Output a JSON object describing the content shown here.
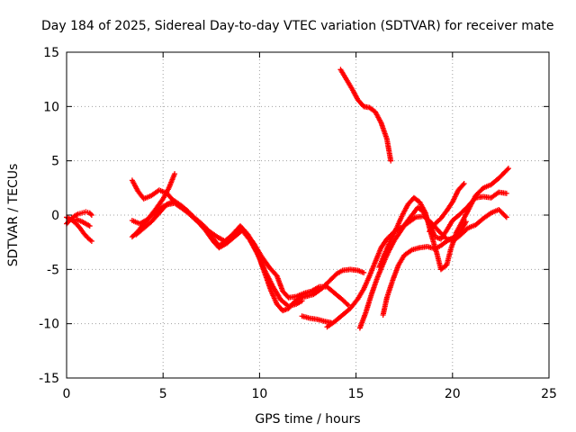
{
  "chart_data": {
    "type": "scatter",
    "title": "Day 184 of 2025, Sidereal Day-to-day VTEC variation (SDTVAR) for receiver mate",
    "xlabel": "GPS time / hours",
    "ylabel": "SDTVAR / TECUs",
    "xlim": [
      0,
      25
    ],
    "ylim": [
      -15,
      15
    ],
    "xticks": [
      0,
      5,
      10,
      15,
      20,
      25
    ],
    "yticks": [
      -15,
      -10,
      -5,
      0,
      5,
      10,
      15
    ],
    "grid": true,
    "marker": "+",
    "color": "#ff0000",
    "series": [
      {
        "points": [
          [
            0,
            -0.2
          ],
          [
            0.3,
            -0.5
          ],
          [
            0.5,
            -0.8
          ],
          [
            0.7,
            -1.2
          ],
          [
            0.9,
            -1.7
          ],
          [
            1.1,
            -2.1
          ],
          [
            1.3,
            -2.4
          ]
        ]
      },
      {
        "points": [
          [
            0,
            -0.8
          ],
          [
            0.2,
            -0.4
          ],
          [
            0.4,
            -0.1
          ],
          [
            0.6,
            0.1
          ],
          [
            0.8,
            0.2
          ],
          [
            1.0,
            0.3
          ],
          [
            1.2,
            0.2
          ],
          [
            1.3,
            0.0
          ]
        ]
      },
      {
        "points": [
          [
            0.5,
            -0.4
          ],
          [
            0.8,
            -0.6
          ],
          [
            1.0,
            -0.8
          ],
          [
            1.2,
            -1.0
          ]
        ]
      },
      {
        "points": [
          [
            3.4,
            -2.0
          ],
          [
            3.7,
            -1.5
          ],
          [
            4.0,
            -0.8
          ],
          [
            4.3,
            -0.2
          ],
          [
            4.6,
            0.3
          ],
          [
            5.0,
            0.8
          ],
          [
            5.3,
            1.0
          ],
          [
            5.6,
            1.1
          ],
          [
            6.0,
            0.6
          ],
          [
            6.3,
            0.2
          ],
          [
            6.6,
            -0.3
          ],
          [
            7.0,
            -0.9
          ],
          [
            7.3,
            -1.5
          ],
          [
            7.6,
            -2.2
          ],
          [
            7.9,
            -2.8
          ],
          [
            8.2,
            -2.5
          ],
          [
            8.5,
            -2.0
          ],
          [
            8.8,
            -1.4
          ],
          [
            9.1,
            -1.2
          ],
          [
            9.4,
            -1.8
          ],
          [
            9.7,
            -2.8
          ],
          [
            10.0,
            -4.0
          ],
          [
            10.3,
            -5.5
          ],
          [
            10.6,
            -7.0
          ],
          [
            10.9,
            -8.2
          ],
          [
            11.2,
            -8.8
          ],
          [
            11.5,
            -8.6
          ],
          [
            11.8,
            -8.0
          ],
          [
            12.1,
            -7.6
          ],
          [
            12.4,
            -7.5
          ],
          [
            12.8,
            -7.3
          ],
          [
            13.2,
            -6.8
          ],
          [
            13.6,
            -6.1
          ],
          [
            14.0,
            -5.4
          ],
          [
            14.3,
            -5.1
          ],
          [
            14.7,
            -5.0
          ],
          [
            15.1,
            -5.1
          ],
          [
            15.4,
            -5.3
          ]
        ]
      },
      {
        "points": [
          [
            3.4,
            -0.5
          ],
          [
            3.8,
            -0.8
          ],
          [
            4.2,
            -0.4
          ],
          [
            4.6,
            0.5
          ],
          [
            5.0,
            1.5
          ],
          [
            5.3,
            2.5
          ],
          [
            5.6,
            3.8
          ]
        ]
      },
      {
        "points": [
          [
            3.4,
            3.2
          ],
          [
            3.7,
            2.2
          ],
          [
            4.0,
            1.5
          ],
          [
            4.4,
            1.8
          ],
          [
            4.8,
            2.3
          ],
          [
            5.2,
            2.0
          ],
          [
            5.5,
            1.4
          ],
          [
            5.8,
            0.9
          ],
          [
            6.2,
            0.5
          ],
          [
            6.6,
            -0.2
          ],
          [
            7.0,
            -0.8
          ],
          [
            7.4,
            -1.5
          ],
          [
            7.8,
            -2.0
          ],
          [
            8.2,
            -2.4
          ],
          [
            8.6,
            -1.8
          ],
          [
            9.0,
            -1.0
          ],
          [
            9.3,
            -1.6
          ],
          [
            9.7,
            -2.6
          ],
          [
            10.1,
            -3.8
          ],
          [
            10.5,
            -4.8
          ],
          [
            10.9,
            -5.6
          ],
          [
            11.2,
            -7.0
          ],
          [
            11.5,
            -7.6
          ],
          [
            11.9,
            -7.5
          ],
          [
            12.3,
            -7.2
          ],
          [
            12.7,
            -7.0
          ],
          [
            13.1,
            -6.6
          ],
          [
            13.5,
            -6.6
          ],
          [
            13.9,
            -7.2
          ],
          [
            14.3,
            -7.8
          ],
          [
            14.6,
            -8.3
          ]
        ]
      },
      {
        "points": [
          [
            3.6,
            -1.8
          ],
          [
            4.0,
            -1.2
          ],
          [
            4.4,
            -0.6
          ],
          [
            4.8,
            0.2
          ],
          [
            5.2,
            1.0
          ],
          [
            5.6,
            1.3
          ],
          [
            6.0,
            0.8
          ],
          [
            6.4,
            0.1
          ],
          [
            6.8,
            -0.6
          ],
          [
            7.2,
            -1.4
          ],
          [
            7.6,
            -2.4
          ],
          [
            7.9,
            -3.0
          ],
          [
            8.3,
            -2.6
          ],
          [
            8.7,
            -2.0
          ],
          [
            9.1,
            -1.4
          ],
          [
            9.5,
            -2.3
          ],
          [
            9.9,
            -3.6
          ],
          [
            10.3,
            -5.2
          ],
          [
            10.7,
            -6.6
          ],
          [
            11.1,
            -7.8
          ],
          [
            11.5,
            -8.4
          ],
          [
            11.9,
            -8.2
          ],
          [
            12.2,
            -7.9
          ]
        ]
      },
      {
        "points": [
          [
            12.2,
            -9.3
          ],
          [
            12.6,
            -9.5
          ],
          [
            13.0,
            -9.6
          ],
          [
            13.4,
            -9.8
          ],
          [
            13.7,
            -9.9
          ]
        ]
      },
      {
        "points": [
          [
            13.5,
            -10.3
          ],
          [
            13.9,
            -9.8
          ],
          [
            14.3,
            -9.2
          ],
          [
            14.7,
            -8.6
          ],
          [
            15.1,
            -7.7
          ],
          [
            15.4,
            -6.8
          ],
          [
            15.7,
            -5.6
          ],
          [
            16.0,
            -4.3
          ],
          [
            16.3,
            -3.0
          ],
          [
            16.6,
            -2.2
          ],
          [
            17.0,
            -1.5
          ],
          [
            17.4,
            -1.1
          ],
          [
            17.7,
            -0.7
          ],
          [
            18.1,
            -0.2
          ],
          [
            18.5,
            -0.1
          ],
          [
            18.9,
            -0.7
          ],
          [
            19.3,
            -1.5
          ],
          [
            19.7,
            -2.2
          ],
          [
            20.1,
            -2.3
          ],
          [
            20.5,
            -1.7
          ],
          [
            20.8,
            -1.2
          ],
          [
            21.2,
            -0.9
          ],
          [
            21.6,
            -0.3
          ],
          [
            22.0,
            0.2
          ],
          [
            22.4,
            0.5
          ],
          [
            22.8,
            -0.2
          ]
        ]
      },
      {
        "points": [
          [
            15.2,
            -10.4
          ],
          [
            15.5,
            -9.0
          ],
          [
            15.8,
            -7.3
          ],
          [
            16.1,
            -5.8
          ],
          [
            16.4,
            -4.5
          ],
          [
            16.7,
            -3.3
          ],
          [
            17.0,
            -2.3
          ],
          [
            17.3,
            -1.5
          ],
          [
            17.6,
            -0.7
          ],
          [
            17.9,
            0.0
          ],
          [
            18.2,
            0.7
          ],
          [
            18.5,
            0.3
          ],
          [
            18.8,
            -0.8
          ],
          [
            19.1,
            -2.0
          ],
          [
            19.4,
            -2.2
          ],
          [
            19.7,
            -1.4
          ],
          [
            20.0,
            -0.5
          ],
          [
            20.4,
            0.1
          ],
          [
            20.8,
            0.8
          ],
          [
            21.2,
            1.6
          ],
          [
            21.6,
            1.7
          ],
          [
            22.0,
            1.6
          ],
          [
            22.4,
            2.1
          ],
          [
            22.8,
            2.0
          ]
        ]
      },
      {
        "points": [
          [
            16.4,
            -9.2
          ],
          [
            16.6,
            -7.6
          ],
          [
            16.9,
            -6.0
          ],
          [
            17.2,
            -4.6
          ],
          [
            17.5,
            -3.7
          ],
          [
            17.9,
            -3.2
          ],
          [
            18.3,
            -3.0
          ],
          [
            18.7,
            -2.9
          ],
          [
            19.1,
            -3.1
          ],
          [
            19.4,
            -2.8
          ],
          [
            19.7,
            -2.4
          ],
          [
            20.1,
            -2.0
          ],
          [
            20.4,
            -1.6
          ],
          [
            20.7,
            -0.6
          ]
        ]
      },
      {
        "points": [
          [
            16.2,
            -4.8
          ],
          [
            16.5,
            -3.5
          ],
          [
            16.8,
            -2.3
          ],
          [
            17.1,
            -1.2
          ],
          [
            17.4,
            0.0
          ],
          [
            17.7,
            1.0
          ],
          [
            18.0,
            1.6
          ],
          [
            18.3,
            1.2
          ],
          [
            18.6,
            0.2
          ],
          [
            18.9,
            -1.8
          ],
          [
            19.2,
            -3.6
          ],
          [
            19.4,
            -5.0
          ],
          [
            19.7,
            -4.6
          ],
          [
            19.9,
            -3.2
          ],
          [
            20.2,
            -1.6
          ],
          [
            20.5,
            -0.6
          ],
          [
            20.8,
            0.4
          ],
          [
            21.2,
            1.8
          ],
          [
            21.6,
            2.5
          ],
          [
            22.0,
            2.8
          ],
          [
            22.4,
            3.4
          ],
          [
            22.9,
            4.3
          ]
        ]
      },
      {
        "points": [
          [
            18.8,
            -1.5
          ],
          [
            19.1,
            -0.8
          ],
          [
            19.4,
            -0.3
          ],
          [
            19.7,
            0.4
          ],
          [
            20.0,
            1.2
          ],
          [
            20.3,
            2.3
          ],
          [
            20.6,
            2.9
          ]
        ]
      },
      {
        "points": [
          [
            14.2,
            13.4
          ],
          [
            14.5,
            12.5
          ],
          [
            14.8,
            11.6
          ],
          [
            15.1,
            10.6
          ],
          [
            15.4,
            10.0
          ],
          [
            15.7,
            9.9
          ],
          [
            16.0,
            9.5
          ],
          [
            16.3,
            8.5
          ],
          [
            16.6,
            7.0
          ],
          [
            16.8,
            5.0
          ]
        ]
      }
    ]
  }
}
